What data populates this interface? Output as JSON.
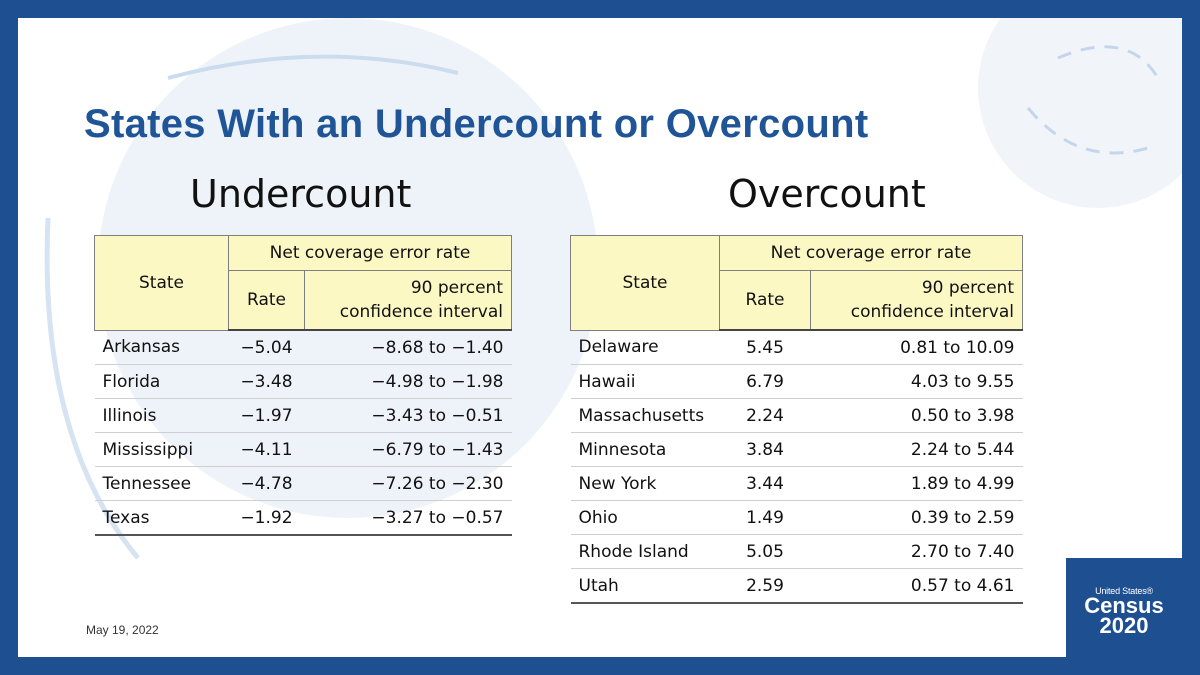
{
  "slide": {
    "title": "States With an Undercount or Overcount",
    "date": "May 19, 2022"
  },
  "undercount": {
    "heading": "Undercount",
    "header": {
      "state": "State",
      "group": "Net coverage error rate",
      "rate": "Rate",
      "ci_line1": "90 percent",
      "ci_line2": "confidence interval"
    },
    "rows": [
      {
        "state": "Arkansas",
        "rate": "−5.04",
        "ci": "−8.68 to −1.40"
      },
      {
        "state": "Florida",
        "rate": "−3.48",
        "ci": "−4.98 to −1.98"
      },
      {
        "state": "Illinois",
        "rate": "−1.97",
        "ci": "−3.43 to −0.51"
      },
      {
        "state": "Mississippi",
        "rate": "−4.11",
        "ci": "−6.79 to −1.43"
      },
      {
        "state": "Tennessee",
        "rate": "−4.78",
        "ci": "−7.26 to −2.30"
      },
      {
        "state": "Texas",
        "rate": "−1.92",
        "ci": "−3.27 to −0.57"
      }
    ]
  },
  "overcount": {
    "heading": "Overcount",
    "header": {
      "state": "State",
      "group": "Net coverage error rate",
      "rate": "Rate",
      "ci_line1": "90 percent",
      "ci_line2": "confidence interval"
    },
    "rows": [
      {
        "state": "Delaware",
        "rate": "5.45",
        "ci": "0.81 to 10.09"
      },
      {
        "state": "Hawaii",
        "rate": "6.79",
        "ci": "4.03 to 9.55"
      },
      {
        "state": "Massachusetts",
        "rate": "2.24",
        "ci": "0.50 to 3.98"
      },
      {
        "state": "Minnesota",
        "rate": "3.84",
        "ci": "2.24 to 5.44"
      },
      {
        "state": "New York",
        "rate": "3.44",
        "ci": "1.89 to 4.99"
      },
      {
        "state": "Ohio",
        "rate": "1.49",
        "ci": "0.39 to 2.59"
      },
      {
        "state": "Rhode Island",
        "rate": "5.05",
        "ci": "2.70 to 7.40"
      },
      {
        "state": "Utah",
        "rate": "2.59",
        "ci": "0.57 to 4.61"
      }
    ]
  },
  "logo": {
    "line1": "United States®",
    "line2": "Census",
    "line3": "2020"
  },
  "colors": {
    "frame": "#1d4f91",
    "title": "#1f5596",
    "header_fill": "#fbf8c4"
  }
}
